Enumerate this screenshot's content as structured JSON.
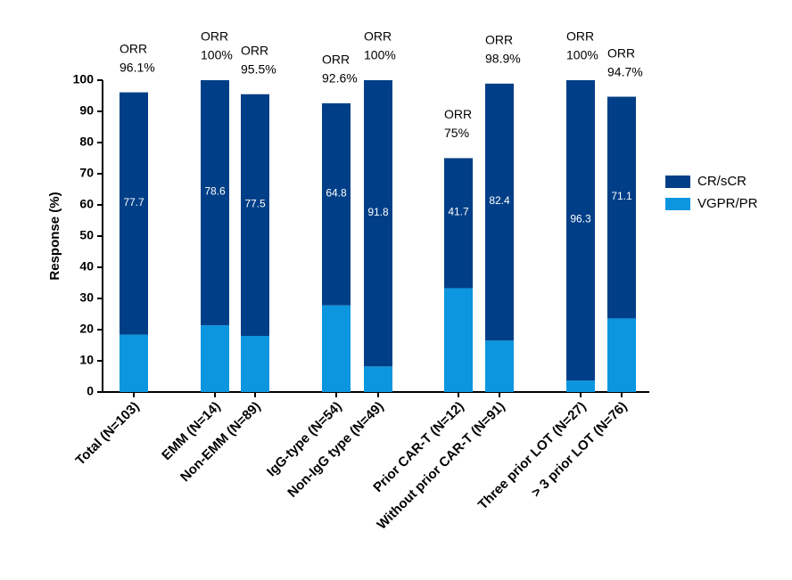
{
  "chart_data": {
    "type": "stacked_bar",
    "categories": [
      "Total (N=103)",
      "EMM (N=14)",
      "Non-EMM (N=89)",
      "IgG-type (N=54)",
      "Non-IgG type (N=49)",
      "Prior CAR-T (N=12)",
      "Without prior CAR-T (N=91)",
      "Three prior LOT (N=27)",
      "> 3 prior LOT (N=76)"
    ],
    "series": [
      {
        "name": "VGPR/PR",
        "color": "#0c96e0",
        "values": [
          18.4,
          21.4,
          18.0,
          27.8,
          8.2,
          33.3,
          16.5,
          3.7,
          23.6
        ]
      },
      {
        "name": "CR/sCR",
        "color": "#003f87",
        "values": [
          77.7,
          78.6,
          77.5,
          64.8,
          91.8,
          41.7,
          82.4,
          96.3,
          71.1
        ]
      }
    ],
    "orr_label": "ORR",
    "orr_values": [
      96.1,
      100,
      95.5,
      92.6,
      100,
      75,
      98.9,
      100,
      94.7
    ],
    "orr_value_labels": [
      "96.1%",
      "100%",
      "95.5%",
      "92.6%",
      "100%",
      "75%",
      "98.9%",
      "100%",
      "94.7%"
    ],
    "y_label": "Response (%)",
    "ylim": [
      0,
      100
    ],
    "yticks": [
      0,
      10,
      20,
      30,
      40,
      50,
      60,
      70,
      80,
      90,
      100
    ],
    "legend": "right"
  }
}
